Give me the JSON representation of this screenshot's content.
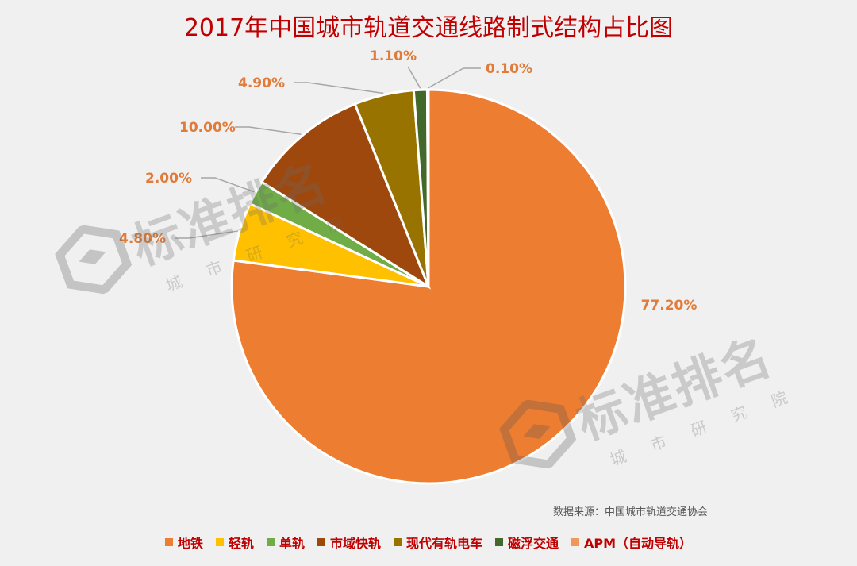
{
  "title": "2017年中国城市轨道交通线路制式结构占比图",
  "source_note": "数据来源：中国城市轨道交通协会",
  "watermark": {
    "main": "标准排名",
    "sub": "城市研究院"
  },
  "chart_data": {
    "type": "pie",
    "title": "2017年中国城市轨道交通线路制式结构占比图",
    "legend_position": "bottom",
    "slices": [
      {
        "name": "地铁",
        "value": 77.2,
        "label": "77.20%",
        "color": "#ed7d31"
      },
      {
        "name": "轻轨",
        "value": 4.8,
        "label": "4.80%",
        "color": "#ffc000"
      },
      {
        "name": "单轨",
        "value": 2.0,
        "label": "2.00%",
        "color": "#70ad47"
      },
      {
        "name": "市域快轨",
        "value": 10.0,
        "label": "10.00%",
        "color": "#9e480e"
      },
      {
        "name": "现代有轨电车",
        "value": 4.9,
        "label": "4.90%",
        "color": "#997300"
      },
      {
        "name": "磁浮交通",
        "value": 1.1,
        "label": "1.10%",
        "color": "#43682b"
      },
      {
        "name": "APM（自动导轨）",
        "value": 0.1,
        "label": "0.10%",
        "color": "#f1975a"
      }
    ]
  }
}
